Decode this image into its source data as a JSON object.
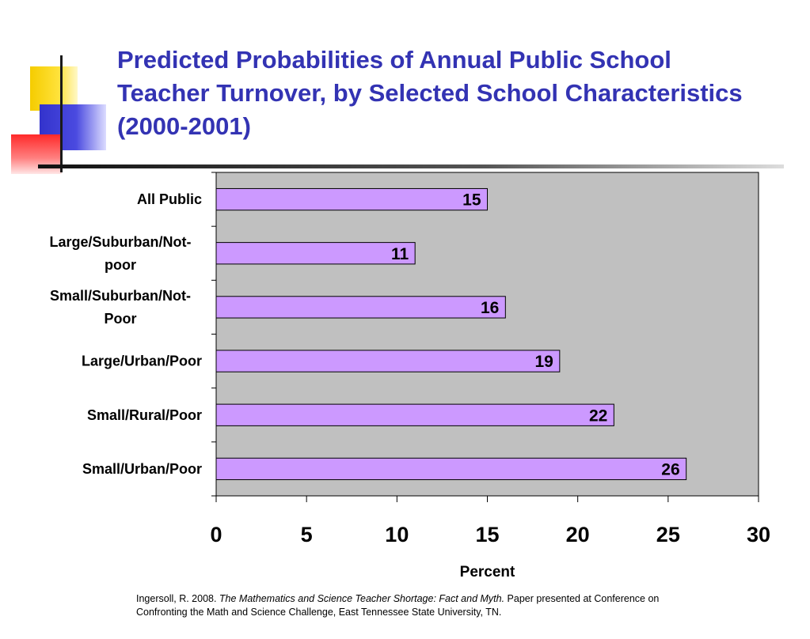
{
  "title": "Predicted Probabilities of Annual Public School Teacher Turnover, by Selected School Characteristics (2000-2001)",
  "citation": {
    "prefix": "Ingersoll, R. 2008. ",
    "work": "The Mathematics and Science Teacher Shortage: Fact and Myth.",
    "suffix": " Paper presented at Conference on Confronting the Math and Science Challenge, East Tennessee State University, TN."
  },
  "colors": {
    "title": "#3333b3",
    "bar_fill": "#cc99ff",
    "plot_background": "#c0c0c0"
  },
  "chart_data": {
    "type": "bar",
    "orientation": "horizontal",
    "title": "",
    "xlabel": "Percent",
    "ylabel": "",
    "categories": [
      "All Public",
      "Large/Suburban/Not-poor",
      "Small/Suburban/Not-Poor",
      "Large/Urban/Poor",
      "Small/Rural/Poor",
      "Small/Urban/Poor"
    ],
    "category_label_lines": [
      [
        "All Public"
      ],
      [
        "Large/Suburban/Not-",
        "poor"
      ],
      [
        "Small/Suburban/Not-",
        "Poor"
      ],
      [
        "Large/Urban/Poor"
      ],
      [
        "Small/Rural/Poor"
      ],
      [
        "Small/Urban/Poor"
      ]
    ],
    "values": [
      15,
      11,
      16,
      19,
      22,
      26
    ],
    "data_labels": [
      "15",
      "11",
      "16",
      "19",
      "22",
      "26"
    ],
    "xlim": [
      0,
      30
    ],
    "xticks": [
      0,
      5,
      10,
      15,
      20,
      25,
      30
    ],
    "grid": false,
    "legend": "none"
  }
}
